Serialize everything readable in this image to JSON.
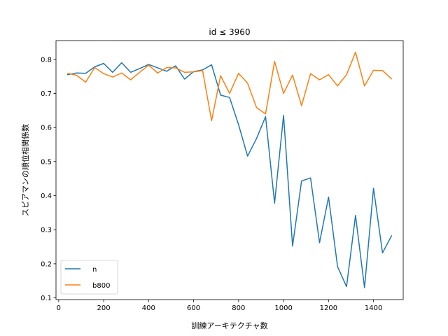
{
  "chart_data": {
    "type": "line",
    "title": "id ≤ 3960",
    "xlabel": "訓練アーキテクチャ数",
    "ylabel": "スピアマンの順位相関係数",
    "xlim": [
      -12,
      1532
    ],
    "ylim": [
      0.095,
      0.855
    ],
    "xticks": [
      0,
      200,
      400,
      600,
      800,
      1000,
      1200,
      1400
    ],
    "yticks": [
      0.1,
      0.2,
      0.3,
      0.4,
      0.5,
      0.6,
      0.7,
      0.8
    ],
    "grid": false,
    "legend": "lower-left",
    "x": [
      40,
      80,
      120,
      160,
      200,
      240,
      280,
      320,
      360,
      400,
      440,
      480,
      520,
      560,
      600,
      640,
      680,
      720,
      760,
      800,
      840,
      880,
      920,
      960,
      1000,
      1040,
      1080,
      1120,
      1160,
      1200,
      1240,
      1280,
      1320,
      1360,
      1400,
      1440,
      1480
    ],
    "series": [
      {
        "name": "n",
        "color": "#1f77b4",
        "values": [
          0.755,
          0.76,
          0.759,
          0.778,
          0.788,
          0.762,
          0.79,
          0.762,
          0.773,
          0.785,
          0.775,
          0.765,
          0.781,
          0.742,
          0.764,
          0.769,
          0.784,
          0.695,
          0.688,
          0.608,
          0.516,
          0.568,
          0.632,
          0.378,
          0.636,
          0.252,
          0.443,
          0.452,
          0.262,
          0.396,
          0.192,
          0.133,
          0.342,
          0.13,
          0.422,
          0.232,
          0.282
        ]
      },
      {
        "name": "b800",
        "color": "#ff7f0e",
        "values": [
          0.759,
          0.753,
          0.733,
          0.776,
          0.758,
          0.748,
          0.76,
          0.74,
          0.762,
          0.783,
          0.76,
          0.776,
          0.775,
          0.762,
          0.763,
          0.767,
          0.62,
          0.752,
          0.7,
          0.759,
          0.73,
          0.658,
          0.64,
          0.794,
          0.7,
          0.754,
          0.664,
          0.758,
          0.74,
          0.755,
          0.722,
          0.755,
          0.821,
          0.722,
          0.768,
          0.767,
          0.743
        ]
      }
    ]
  }
}
